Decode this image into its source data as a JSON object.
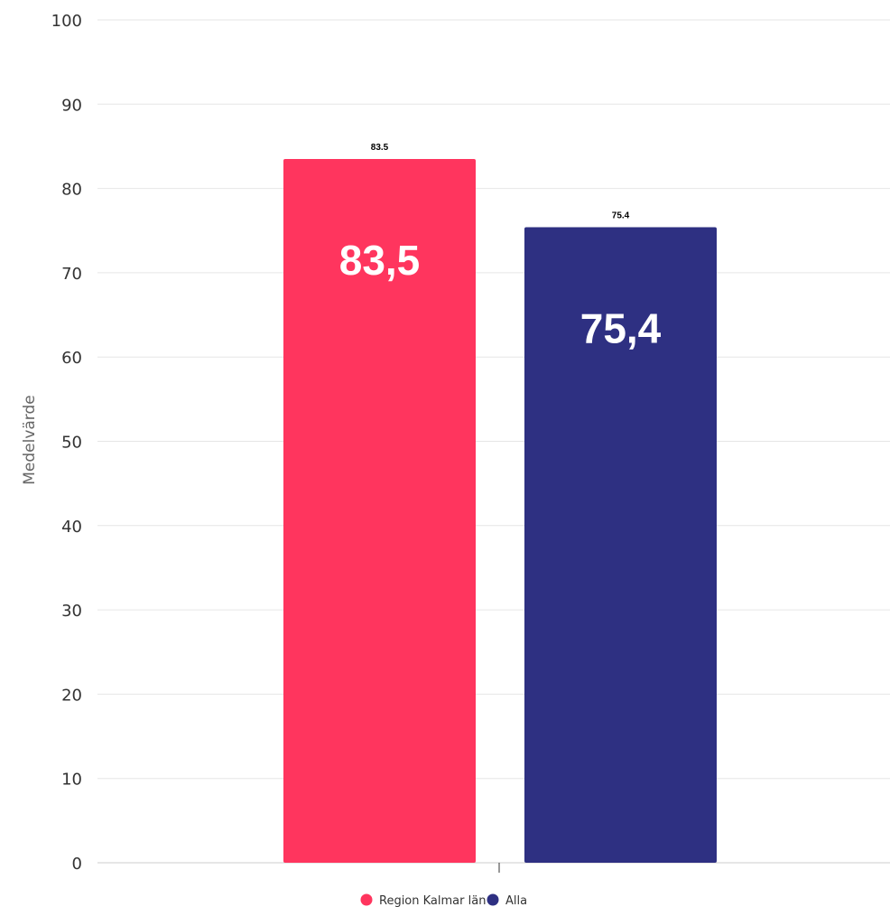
{
  "chart_data": {
    "type": "bar",
    "ylabel": "Medelvärde",
    "ylim": [
      0,
      100
    ],
    "yticks": [
      "0",
      "10",
      "20",
      "30",
      "40",
      "50",
      "60",
      "70",
      "80",
      "90",
      "100"
    ],
    "grid": true,
    "legend_position": "bottom-center",
    "series": [
      {
        "name": "Region Kalmar län",
        "value": 83.5,
        "small_label": "83.5",
        "big_label": "83,5",
        "color": "#FF355E"
      },
      {
        "name": "Alla",
        "value": 75.4,
        "small_label": "75.4",
        "big_label": "75,4",
        "color": "#2E3082"
      }
    ]
  }
}
